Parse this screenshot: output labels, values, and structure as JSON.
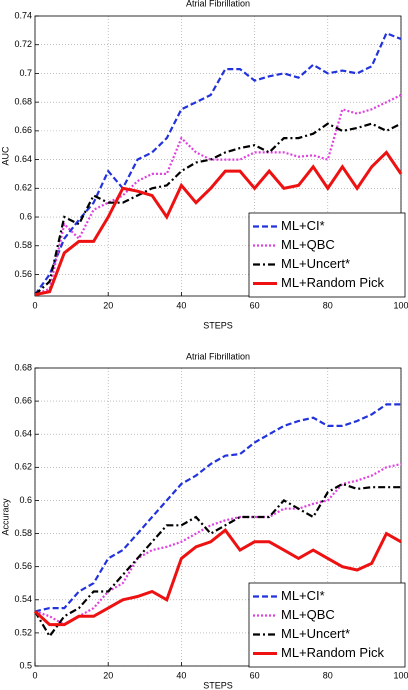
{
  "chart_data": [
    {
      "type": "line",
      "title": "Atrial Fibrillation",
      "xlabel": "STEPS",
      "ylabel": "AUC",
      "x": [
        0,
        4,
        8,
        12,
        16,
        20,
        24,
        28,
        32,
        36,
        40,
        44,
        48,
        52,
        56,
        60,
        64,
        68,
        72,
        76,
        80,
        84,
        88,
        92,
        96,
        100
      ],
      "xlim": [
        0,
        100
      ],
      "xticks": [
        0,
        20,
        40,
        60,
        80,
        100
      ],
      "ylim": [
        0.545,
        0.74
      ],
      "yticks": [
        0.56,
        0.58,
        0.6,
        0.62,
        0.64,
        0.66,
        0.68,
        0.7,
        0.72,
        0.74
      ],
      "grid": true,
      "legend": "lower right",
      "series": [
        {
          "name": "ML+CI*",
          "color": "#2233dd",
          "style": "dashed",
          "values": [
            0.546,
            0.56,
            0.585,
            0.598,
            0.61,
            0.632,
            0.62,
            0.64,
            0.645,
            0.655,
            0.675,
            0.68,
            0.685,
            0.703,
            0.703,
            0.695,
            0.698,
            0.7,
            0.697,
            0.706,
            0.7,
            0.702,
            0.7,
            0.705,
            0.728,
            0.724
          ]
        },
        {
          "name": "ML+QBC",
          "color": "#e040e0",
          "style": "dotted",
          "values": [
            0.546,
            0.55,
            0.595,
            0.585,
            0.605,
            0.61,
            0.615,
            0.625,
            0.63,
            0.63,
            0.655,
            0.645,
            0.64,
            0.64,
            0.64,
            0.645,
            0.645,
            0.645,
            0.642,
            0.643,
            0.64,
            0.675,
            0.672,
            0.675,
            0.68,
            0.685
          ]
        },
        {
          "name": "ML+Uncert*",
          "color": "#000000",
          "style": "dashdot",
          "values": [
            0.546,
            0.555,
            0.6,
            0.595,
            0.615,
            0.61,
            0.61,
            0.615,
            0.62,
            0.622,
            0.632,
            0.638,
            0.64,
            0.645,
            0.648,
            0.65,
            0.645,
            0.655,
            0.655,
            0.658,
            0.665,
            0.66,
            0.662,
            0.665,
            0.66,
            0.665
          ]
        },
        {
          "name": "ML+Random Pick",
          "color": "#ee1111",
          "style": "solid",
          "values": [
            0.546,
            0.548,
            0.575,
            0.583,
            0.583,
            0.6,
            0.62,
            0.618,
            0.615,
            0.6,
            0.622,
            0.61,
            0.62,
            0.632,
            0.632,
            0.62,
            0.632,
            0.62,
            0.622,
            0.635,
            0.62,
            0.635,
            0.62,
            0.635,
            0.645,
            0.63
          ]
        }
      ]
    },
    {
      "type": "line",
      "title": "Atrial Fibrillation",
      "xlabel": "STEPS",
      "ylabel": "Accuracy",
      "x": [
        0,
        4,
        8,
        12,
        16,
        20,
        24,
        28,
        32,
        36,
        40,
        44,
        48,
        52,
        56,
        60,
        64,
        68,
        72,
        76,
        80,
        84,
        88,
        92,
        96,
        100
      ],
      "xlim": [
        0,
        100
      ],
      "xticks": [
        0,
        20,
        40,
        60,
        80,
        100
      ],
      "ylim": [
        0.5,
        0.68
      ],
      "yticks": [
        0.5,
        0.52,
        0.54,
        0.56,
        0.58,
        0.6,
        0.62,
        0.64,
        0.66,
        0.68
      ],
      "grid": true,
      "legend": "lower right",
      "series": [
        {
          "name": "ML+CI*",
          "color": "#2233dd",
          "style": "dashed",
          "values": [
            0.533,
            0.535,
            0.535,
            0.545,
            0.55,
            0.565,
            0.57,
            0.58,
            0.59,
            0.6,
            0.61,
            0.615,
            0.622,
            0.627,
            0.628,
            0.635,
            0.64,
            0.645,
            0.648,
            0.65,
            0.645,
            0.645,
            0.648,
            0.652,
            0.658,
            0.658
          ]
        },
        {
          "name": "ML+QBC",
          "color": "#e040e0",
          "style": "dotted",
          "values": [
            0.533,
            0.53,
            0.525,
            0.53,
            0.535,
            0.545,
            0.55,
            0.565,
            0.57,
            0.572,
            0.575,
            0.58,
            0.585,
            0.588,
            0.59,
            0.59,
            0.59,
            0.595,
            0.595,
            0.598,
            0.6,
            0.61,
            0.612,
            0.615,
            0.62,
            0.622
          ]
        },
        {
          "name": "ML+Uncert*",
          "color": "#000000",
          "style": "dashdot",
          "values": [
            0.533,
            0.518,
            0.53,
            0.535,
            0.545,
            0.545,
            0.555,
            0.565,
            0.575,
            0.585,
            0.585,
            0.59,
            0.58,
            0.585,
            0.59,
            0.59,
            0.59,
            0.6,
            0.595,
            0.59,
            0.605,
            0.61,
            0.607,
            0.608,
            0.608,
            0.608
          ]
        },
        {
          "name": "ML+Random Pick",
          "color": "#ee1111",
          "style": "solid",
          "values": [
            0.533,
            0.525,
            0.525,
            0.53,
            0.53,
            0.535,
            0.54,
            0.542,
            0.545,
            0.54,
            0.565,
            0.572,
            0.575,
            0.582,
            0.57,
            0.575,
            0.575,
            0.57,
            0.565,
            0.57,
            0.565,
            0.56,
            0.558,
            0.562,
            0.58,
            0.575
          ]
        }
      ]
    }
  ]
}
